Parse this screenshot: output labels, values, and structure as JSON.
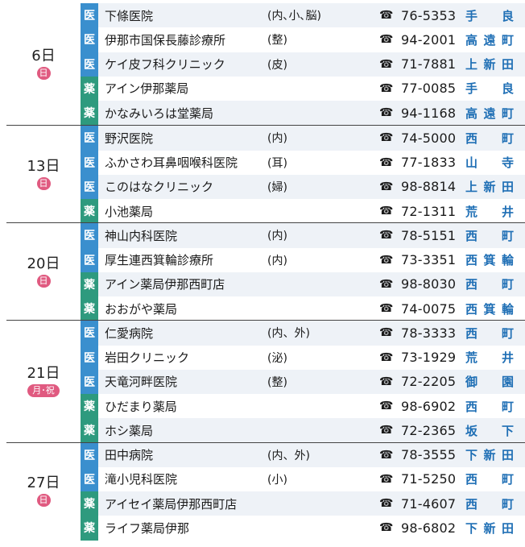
{
  "days": [
    {
      "day": "6日",
      "badge": "日",
      "rows": [
        {
          "type": "医",
          "name": "下條医院",
          "dept": "(内､小､脳)",
          "tel": "76-5353",
          "area": "手良"
        },
        {
          "type": "医",
          "name": "伊那市国保長藤診療所",
          "dept": "(整)",
          "tel": "94-2001",
          "area": "高遠町"
        },
        {
          "type": "医",
          "name": "ケイ皮フ科クリニック",
          "dept": "(皮)",
          "tel": "71-7881",
          "area": "上新田"
        },
        {
          "type": "薬",
          "name": "アイン伊那薬局",
          "dept": "",
          "tel": "77-0085",
          "area": "手良"
        },
        {
          "type": "薬",
          "name": "かなみいろは堂薬局",
          "dept": "",
          "tel": "94-1168",
          "area": "高遠町"
        }
      ]
    },
    {
      "day": "13日",
      "badge": "日",
      "rows": [
        {
          "type": "医",
          "name": "野沢医院",
          "dept": "(内)",
          "tel": "74-5000",
          "area": "西町"
        },
        {
          "type": "医",
          "name": "ふかさわ耳鼻咽喉科医院",
          "dept": "(耳)",
          "tel": "77-1833",
          "area": "山寺"
        },
        {
          "type": "医",
          "name": "このはなクリニック",
          "dept": "(婦)",
          "tel": "98-8814",
          "area": "上新田"
        },
        {
          "type": "薬",
          "name": "小池薬局",
          "dept": "",
          "tel": "72-1311",
          "area": "荒井"
        }
      ]
    },
    {
      "day": "20日",
      "badge": "日",
      "rows": [
        {
          "type": "医",
          "name": "神山内科医院",
          "dept": "(内)",
          "tel": "78-5151",
          "area": "西町"
        },
        {
          "type": "医",
          "name": "厚生連西箕輪診療所",
          "dept": "(内)",
          "tel": "73-3351",
          "area": "西箕輪"
        },
        {
          "type": "薬",
          "name": "アイン薬局伊那西町店",
          "dept": "",
          "tel": "98-8030",
          "area": "西町"
        },
        {
          "type": "薬",
          "name": "おおがや薬局",
          "dept": "",
          "tel": "74-0075",
          "area": "西箕輪"
        }
      ]
    },
    {
      "day": "21日",
      "badge": "月･祝",
      "rows": [
        {
          "type": "医",
          "name": "仁愛病院",
          "dept": "(内、外)",
          "tel": "78-3333",
          "area": "西町"
        },
        {
          "type": "医",
          "name": "岩田クリニック",
          "dept": "(泌)",
          "tel": "73-1929",
          "area": "荒井"
        },
        {
          "type": "医",
          "name": "天竜河畔医院",
          "dept": "(整)",
          "tel": "72-2205",
          "area": "御園"
        },
        {
          "type": "薬",
          "name": "ひだまり薬局",
          "dept": "",
          "tel": "98-6902",
          "area": "西町"
        },
        {
          "type": "薬",
          "name": "ホシ薬局",
          "dept": "",
          "tel": "72-2365",
          "area": "坂下"
        }
      ]
    },
    {
      "day": "27日",
      "badge": "日",
      "rows": [
        {
          "type": "医",
          "name": "田中病院",
          "dept": "(内、外)",
          "tel": "78-3555",
          "area": "下新田"
        },
        {
          "type": "医",
          "name": "滝小児科医院",
          "dept": "(小)",
          "tel": "71-5250",
          "area": "西町"
        },
        {
          "type": "薬",
          "name": "アイセイ薬局伊那西町店",
          "dept": "",
          "tel": "71-4607",
          "area": "西町"
        },
        {
          "type": "薬",
          "name": "ライフ薬局伊那",
          "dept": "",
          "tel": "98-6802",
          "area": "下新田"
        }
      ]
    }
  ]
}
